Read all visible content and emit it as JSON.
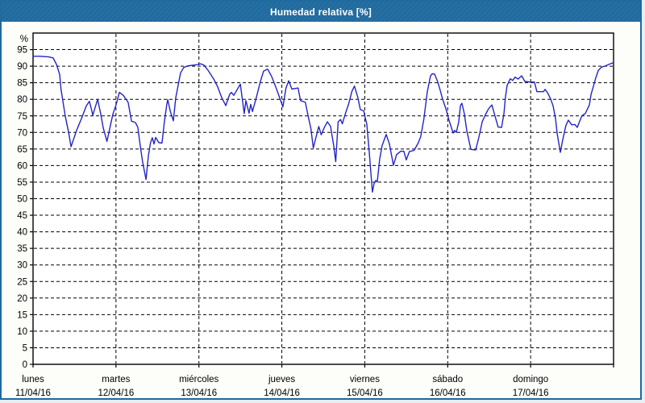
{
  "window": {
    "title": "Humedad relativa [%]"
  },
  "colors": {
    "titlebar_bg": "#1f6a9e",
    "frame_border": "#1f6a9e",
    "title_text": "#ffffff",
    "page_bg": "#fdfefa",
    "plot_bg": "#ffffff",
    "grid": "#000000",
    "axis": "#000000",
    "tick_text": "#000000",
    "line": "#2424c8"
  },
  "chart_data": {
    "type": "line",
    "title": "Humedad relativa [%]",
    "ylabel": "%",
    "unit_label": "%",
    "ylim": [
      0,
      100
    ],
    "xlim_hours": [
      0,
      168
    ],
    "grid": "horizontal dashed every 5 units; vertical dashed at each day boundary",
    "legend_position": "none",
    "y_ticks": [
      0,
      5,
      10,
      15,
      20,
      25,
      30,
      35,
      40,
      45,
      50,
      55,
      60,
      65,
      70,
      75,
      80,
      85,
      90,
      95
    ],
    "x_days": [
      {
        "name": "lunes",
        "date": "11/04/16"
      },
      {
        "name": "martes",
        "date": "12/04/16"
      },
      {
        "name": "miércoles",
        "date": "13/04/16"
      },
      {
        "name": "jueves",
        "date": "14/04/16"
      },
      {
        "name": "viernes",
        "date": "15/04/16"
      },
      {
        "name": "sábado",
        "date": "16/04/16"
      },
      {
        "name": "domingo",
        "date": "17/04/16"
      }
    ],
    "series": [
      {
        "name": "Humedad relativa",
        "color": "#2424c8",
        "points": [
          [
            0,
            93
          ],
          [
            2,
            93
          ],
          [
            4.5,
            92.8
          ],
          [
            5.8,
            92.5
          ],
          [
            6.8,
            90.5
          ],
          [
            7.7,
            87.5
          ],
          [
            8.1,
            83
          ],
          [
            9.3,
            75
          ],
          [
            10.3,
            70
          ],
          [
            11,
            65.7
          ],
          [
            12.6,
            70.6
          ],
          [
            14.2,
            74.7
          ],
          [
            15.4,
            78
          ],
          [
            16.3,
            79.4
          ],
          [
            17,
            76.5
          ],
          [
            17.3,
            75.2
          ],
          [
            18.7,
            80
          ],
          [
            19.6,
            75.5
          ],
          [
            20.3,
            71.4
          ],
          [
            21.4,
            67.3
          ],
          [
            22.4,
            72.2
          ],
          [
            23.1,
            75.5
          ],
          [
            24,
            78.3
          ],
          [
            25,
            82.1
          ],
          [
            26.1,
            81.2
          ],
          [
            27.5,
            79.1
          ],
          [
            28.5,
            73.4
          ],
          [
            29.6,
            73
          ],
          [
            30.3,
            71.6
          ],
          [
            31,
            66
          ],
          [
            31.7,
            61.1
          ],
          [
            32.7,
            55.8
          ],
          [
            33.4,
            63.1
          ],
          [
            34,
            66.9
          ],
          [
            34.5,
            68.4
          ],
          [
            35,
            66.5
          ],
          [
            35.5,
            68.5
          ],
          [
            36.4,
            66.9
          ],
          [
            37.3,
            66.8
          ],
          [
            38,
            73.2
          ],
          [
            38.7,
            78.5
          ],
          [
            39,
            79.9
          ],
          [
            39.7,
            76.5
          ],
          [
            40.6,
            73.5
          ],
          [
            41.3,
            80.5
          ],
          [
            42.2,
            85.4
          ],
          [
            42.7,
            88
          ],
          [
            43.6,
            89.6
          ],
          [
            44.8,
            90.1
          ],
          [
            47.1,
            90.4
          ],
          [
            48.5,
            90.7
          ],
          [
            49.5,
            90.3
          ],
          [
            50.6,
            88.8
          ],
          [
            52.3,
            86.1
          ],
          [
            53.4,
            83.8
          ],
          [
            54.6,
            80.5
          ],
          [
            55.8,
            78.1
          ],
          [
            56.9,
            81.5
          ],
          [
            57.4,
            82.1
          ],
          [
            58.1,
            81.2
          ],
          [
            60,
            84.6
          ],
          [
            61.1,
            75.7
          ],
          [
            61.6,
            79.6
          ],
          [
            62.5,
            75.8
          ],
          [
            63,
            78.5
          ],
          [
            63.5,
            76.3
          ],
          [
            64.6,
            80.5
          ],
          [
            65.8,
            85.4
          ],
          [
            66.7,
            88.5
          ],
          [
            67.9,
            89.1
          ],
          [
            69,
            87
          ],
          [
            70.2,
            83.8
          ],
          [
            71.4,
            80.4
          ],
          [
            72.3,
            77.7
          ],
          [
            73.2,
            83.4
          ],
          [
            74,
            85.6
          ],
          [
            74.9,
            83.1
          ],
          [
            76.7,
            83.4
          ],
          [
            77.4,
            79.6
          ],
          [
            78.8,
            79.1
          ],
          [
            79.7,
            74.5
          ],
          [
            80.4,
            71.2
          ],
          [
            81.1,
            65.3
          ],
          [
            82,
            69
          ],
          [
            82.7,
            71.8
          ],
          [
            83.4,
            69.3
          ],
          [
            84.3,
            71.5
          ],
          [
            85.2,
            73.2
          ],
          [
            86.1,
            71.8
          ],
          [
            87,
            66
          ],
          [
            87.6,
            61.2
          ],
          [
            88.3,
            73.2
          ],
          [
            89,
            73.9
          ],
          [
            89.5,
            72.6
          ],
          [
            90.4,
            75.7
          ],
          [
            91.3,
            78.5
          ],
          [
            92.3,
            82.5
          ],
          [
            93,
            84
          ],
          [
            94,
            80.5
          ],
          [
            94.7,
            76.9
          ],
          [
            95.7,
            76.5
          ],
          [
            96.6,
            72.4
          ],
          [
            97.3,
            64
          ],
          [
            98.2,
            52
          ],
          [
            98.7,
            54.6
          ],
          [
            99.2,
            55.5
          ],
          [
            99.6,
            55
          ],
          [
            100.3,
            61.9
          ],
          [
            101,
            66
          ],
          [
            102.2,
            69.4
          ],
          [
            103.1,
            66.6
          ],
          [
            104.3,
            60.1
          ],
          [
            105.2,
            63.3
          ],
          [
            106.4,
            64.3
          ],
          [
            107.3,
            64.3
          ],
          [
            108,
            61.7
          ],
          [
            108.9,
            64.2
          ],
          [
            110.3,
            64.6
          ],
          [
            111.5,
            66.9
          ],
          [
            112.2,
            68.8
          ],
          [
            113.1,
            74
          ],
          [
            114.1,
            82.3
          ],
          [
            115,
            87
          ],
          [
            115.5,
            87.7
          ],
          [
            116.2,
            87.6
          ],
          [
            117.1,
            85.3
          ],
          [
            117.8,
            82.8
          ],
          [
            118.5,
            80.1
          ],
          [
            119.5,
            77.1
          ],
          [
            120.4,
            73.6
          ],
          [
            121.6,
            69.8
          ],
          [
            122,
            70.6
          ],
          [
            122.5,
            70
          ],
          [
            123.2,
            73.2
          ],
          [
            123.7,
            78.1
          ],
          [
            124.1,
            78.8
          ],
          [
            124.8,
            75.7
          ],
          [
            125.5,
            70.6
          ],
          [
            126.7,
            64.9
          ],
          [
            128.1,
            64.7
          ],
          [
            129,
            68.5
          ],
          [
            130,
            73.2
          ],
          [
            130.9,
            75.3
          ],
          [
            131.8,
            77.1
          ],
          [
            132.8,
            78.3
          ],
          [
            133.7,
            74.9
          ],
          [
            134.6,
            71.6
          ],
          [
            135.6,
            71.5
          ],
          [
            136.3,
            75.8
          ],
          [
            136.7,
            80.7
          ],
          [
            137.2,
            84.2
          ],
          [
            138.1,
            86.2
          ],
          [
            138.8,
            85.7
          ],
          [
            139.5,
            86.7
          ],
          [
            140.4,
            86.1
          ],
          [
            141.4,
            87.1
          ],
          [
            142.3,
            85.4
          ],
          [
            143.9,
            85.2
          ],
          [
            145.1,
            85.2
          ],
          [
            145.8,
            82.3
          ],
          [
            147.7,
            82.3
          ],
          [
            148.2,
            83
          ],
          [
            148.9,
            82
          ],
          [
            149.8,
            80.1
          ],
          [
            150.5,
            78
          ],
          [
            151.2,
            74.2
          ],
          [
            151.7,
            69.6
          ],
          [
            152.6,
            64
          ],
          [
            153.3,
            67.8
          ],
          [
            154.2,
            72.1
          ],
          [
            154.9,
            73.7
          ],
          [
            155.9,
            72.3
          ],
          [
            156.8,
            72.4
          ],
          [
            157.5,
            71.5
          ],
          [
            158.2,
            73.4
          ],
          [
            158.9,
            75.1
          ],
          [
            159.8,
            75.7
          ],
          [
            161,
            78.3
          ],
          [
            161.5,
            81.5
          ],
          [
            162.2,
            84
          ],
          [
            162.9,
            86.6
          ],
          [
            163.6,
            88.7
          ],
          [
            164.5,
            89.7
          ],
          [
            165.4,
            90
          ],
          [
            166.6,
            90.5
          ],
          [
            167.5,
            90.9
          ],
          [
            168,
            91
          ]
        ]
      }
    ]
  }
}
